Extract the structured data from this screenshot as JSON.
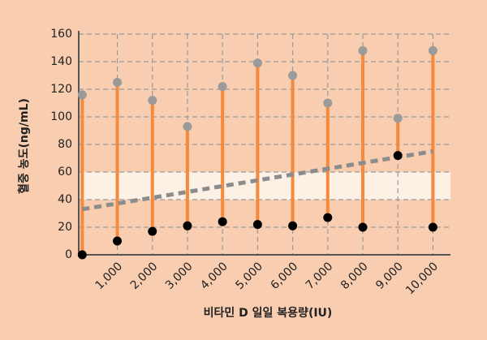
{
  "chart_data": {
    "type": "range",
    "y_label": "혈중 농도(ng/mL)",
    "x_label": "비타민 D 일일 복용량(IU)",
    "x": [
      0,
      1000,
      2000,
      3000,
      4000,
      5000,
      6000,
      7000,
      8000,
      9000,
      10000
    ],
    "series": [
      {
        "color": "#9a9a9a",
        "values": [
          116,
          125,
          112,
          93,
          122,
          139,
          130,
          110,
          148,
          99,
          148
        ]
      },
      {
        "color": "#000000",
        "values": [
          0,
          10,
          17,
          21,
          24,
          22,
          21,
          27,
          20,
          72,
          20
        ]
      }
    ],
    "range_color": "#f58a3d",
    "trend": {
      "x": [
        0,
        10000
      ],
      "values": [
        33,
        75
      ],
      "color": "#8c8c8c"
    },
    "band": [
      40,
      60
    ],
    "xlim": [
      -100,
      10500
    ],
    "xticks": [
      {
        "value": 1000,
        "label": "1,000"
      },
      {
        "value": 2000,
        "label": "2,000"
      },
      {
        "value": 3000,
        "label": "3,000"
      },
      {
        "value": 4000,
        "label": "4,000"
      },
      {
        "value": 5000,
        "label": "5,000"
      },
      {
        "value": 6000,
        "label": "6,000"
      },
      {
        "value": 7000,
        "label": "7,000"
      },
      {
        "value": 8000,
        "label": "8,000"
      },
      {
        "value": 9000,
        "label": "9,000"
      },
      {
        "value": 10000,
        "label": "10,000"
      }
    ],
    "ylim": [
      0,
      160
    ],
    "yticks": [
      0,
      20,
      40,
      60,
      80,
      100,
      120,
      140,
      160
    ],
    "grid": true
  }
}
